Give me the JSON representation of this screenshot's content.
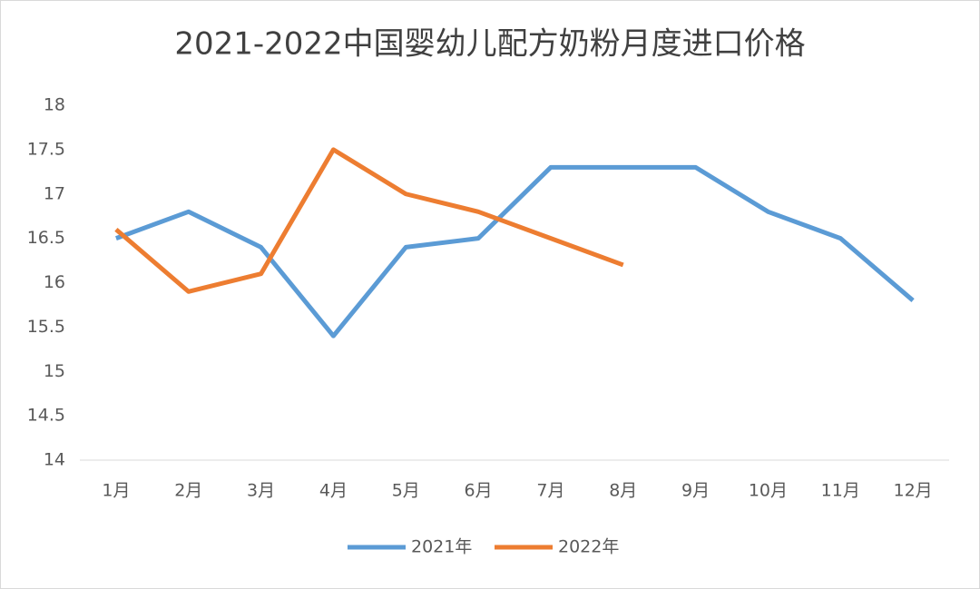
{
  "chart_data": {
    "type": "line",
    "title": "2021-2022中国婴幼儿配方奶粉月度进口价格",
    "categories": [
      "1月",
      "2月",
      "3月",
      "4月",
      "5月",
      "6月",
      "7月",
      "8月",
      "9月",
      "10月",
      "11月",
      "12月"
    ],
    "series": [
      {
        "name": "2021年",
        "color": "#5b9bd5",
        "values": [
          16.5,
          16.8,
          16.4,
          15.4,
          16.4,
          16.5,
          17.3,
          17.3,
          17.3,
          16.8,
          16.5,
          15.8
        ]
      },
      {
        "name": "2022年",
        "color": "#ed7d31",
        "values": [
          16.6,
          15.9,
          16.1,
          17.5,
          17.0,
          16.8,
          16.5,
          16.2,
          null,
          null,
          null,
          null
        ]
      }
    ],
    "ylim": [
      14,
      18
    ],
    "yticks": [
      14,
      14.5,
      15,
      15.5,
      16,
      16.5,
      17,
      17.5,
      18
    ],
    "grid": false,
    "legend": "bottom"
  }
}
